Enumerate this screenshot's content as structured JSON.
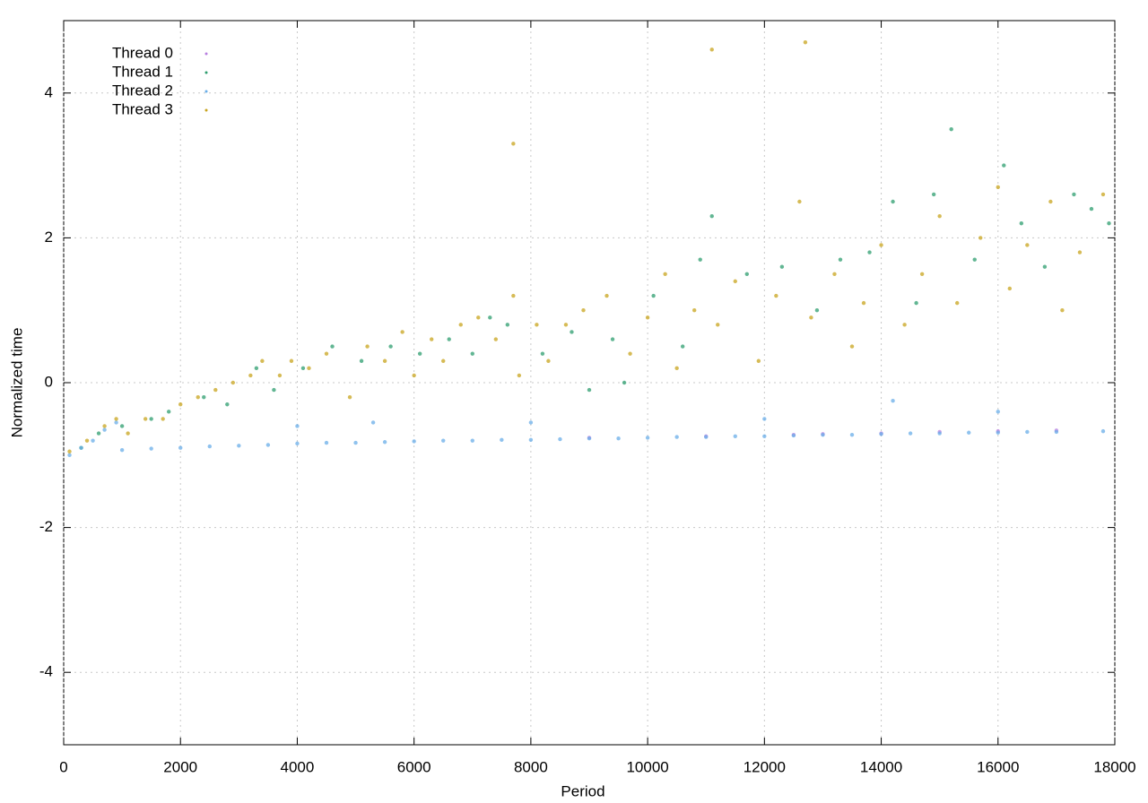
{
  "chart_data": {
    "type": "scatter",
    "x_label": "Period",
    "y_label": "Normalized time",
    "xlim": [
      0,
      18000
    ],
    "ylim": [
      -5,
      5
    ],
    "xticks": [
      0,
      2000,
      4000,
      6000,
      8000,
      10000,
      12000,
      14000,
      16000,
      18000
    ],
    "yticks": [
      -4,
      -2,
      0,
      2,
      4
    ],
    "grid": true,
    "legend": "top-left",
    "series": [
      {
        "name": "Thread 0",
        "color": "#b87fe0",
        "x": [
          9000,
          11000,
          12500,
          13000,
          14000,
          15000,
          16000,
          17000
        ],
        "values": [
          -0.76,
          -0.74,
          -0.72,
          -0.71,
          -0.7,
          -0.68,
          -0.67,
          -0.66
        ]
      },
      {
        "name": "Thread 1",
        "color": "#2e9e6f",
        "x": [
          300,
          600,
          1000,
          1500,
          1800,
          2400,
          2800,
          3300,
          3600,
          4100,
          4600,
          5100,
          5600,
          6100,
          6600,
          7000,
          7300,
          7600,
          8200,
          8700,
          9000,
          9400,
          9600,
          10100,
          10600,
          10900,
          11100,
          11700,
          12300,
          12900,
          13300,
          13800,
          14200,
          14600,
          14900,
          15200,
          15600,
          16100,
          16400,
          16800,
          17300,
          17600,
          17900
        ],
        "values": [
          -0.9,
          -0.7,
          -0.6,
          -0.5,
          -0.4,
          -0.2,
          -0.3,
          0.2,
          -0.1,
          0.2,
          0.5,
          0.3,
          0.5,
          0.4,
          0.6,
          0.4,
          0.9,
          0.8,
          0.4,
          0.7,
          -0.1,
          0.6,
          0.0,
          1.2,
          0.5,
          1.7,
          2.3,
          1.5,
          1.6,
          1.0,
          1.7,
          1.8,
          2.5,
          1.1,
          2.6,
          3.5,
          1.7,
          3.0,
          2.2,
          1.6,
          2.6,
          2.4,
          2.2
        ]
      },
      {
        "name": "Thread 2",
        "color": "#6aaee8",
        "x": [
          100,
          300,
          500,
          700,
          900,
          1000,
          1500,
          2000,
          2500,
          3000,
          3500,
          4000,
          4500,
          5000,
          5500,
          6000,
          6500,
          7000,
          7500,
          8000,
          8500,
          9000,
          9500,
          10000,
          10500,
          11000,
          11500,
          12000,
          12500,
          13000,
          13500,
          14000,
          14500,
          15000,
          15500,
          16000,
          16500,
          17000,
          17800,
          4000,
          8000,
          12000,
          16000,
          14200,
          5300
        ],
        "values": [
          -1.0,
          -0.9,
          -0.8,
          -0.65,
          -0.55,
          -0.93,
          -0.91,
          -0.9,
          -0.88,
          -0.87,
          -0.86,
          -0.84,
          -0.83,
          -0.83,
          -0.82,
          -0.81,
          -0.8,
          -0.8,
          -0.79,
          -0.79,
          -0.78,
          -0.77,
          -0.77,
          -0.76,
          -0.75,
          -0.75,
          -0.74,
          -0.74,
          -0.73,
          -0.72,
          -0.72,
          -0.71,
          -0.7,
          -0.7,
          -0.69,
          -0.69,
          -0.68,
          -0.68,
          -0.67,
          -0.6,
          -0.55,
          -0.5,
          -0.4,
          -0.25,
          -0.55
        ]
      },
      {
        "name": "Thread 3",
        "color": "#c8a41e",
        "x": [
          100,
          400,
          700,
          900,
          1100,
          1400,
          1700,
          2000,
          2300,
          2600,
          2900,
          3200,
          3400,
          3700,
          3900,
          4200,
          4500,
          4900,
          5200,
          5500,
          5800,
          6000,
          6300,
          6500,
          6800,
          7100,
          7400,
          7700,
          7800,
          8100,
          8300,
          8600,
          8900,
          9300,
          9700,
          10000,
          10300,
          10500,
          10800,
          11200,
          11500,
          11900,
          12200,
          12600,
          12800,
          13200,
          13500,
          13700,
          14000,
          14400,
          14700,
          15000,
          15300,
          15700,
          16000,
          16200,
          16500,
          16900,
          17100,
          17400,
          17800,
          11100,
          12700,
          7700
        ],
        "values": [
          -0.95,
          -0.8,
          -0.6,
          -0.5,
          -0.7,
          -0.5,
          -0.5,
          -0.3,
          -0.2,
          -0.1,
          0.0,
          0.1,
          0.3,
          0.1,
          0.3,
          0.2,
          0.4,
          -0.2,
          0.5,
          0.3,
          0.7,
          0.1,
          0.6,
          0.3,
          0.8,
          0.9,
          0.6,
          1.2,
          0.1,
          0.8,
          0.3,
          0.8,
          1.0,
          1.2,
          0.4,
          0.9,
          1.5,
          0.2,
          1.0,
          0.8,
          1.4,
          0.3,
          1.2,
          2.5,
          0.9,
          1.5,
          0.5,
          1.1,
          1.9,
          0.8,
          1.5,
          2.3,
          1.1,
          2.0,
          2.7,
          1.3,
          1.9,
          2.5,
          1.0,
          1.8,
          2.6,
          4.6,
          4.7,
          3.3
        ]
      }
    ]
  }
}
